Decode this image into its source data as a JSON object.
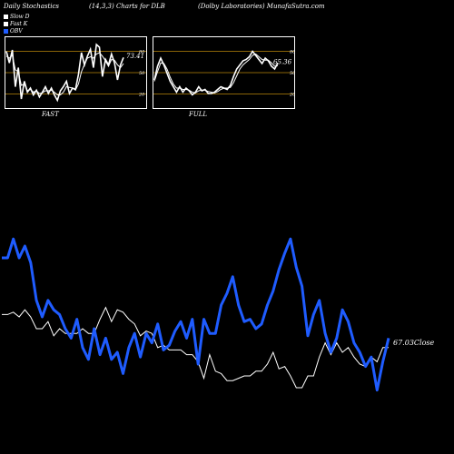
{
  "header": {
    "left": "Daily Stochastics",
    "middle": "(14,3,3) Charts for DLB",
    "right": "(Dolby Laboratories) MunafaSutra.com"
  },
  "legend": [
    {
      "label": "Slow  D",
      "color": "#ffffff"
    },
    {
      "label": "Fast K",
      "color": "#ffffff"
    },
    {
      "label": "OBV",
      "color": "#1f5cff"
    }
  ],
  "colors": {
    "obv": "#1f5cff",
    "price": "#ffffff",
    "levels": "#b8860b",
    "background": "#000000"
  },
  "chart_data": [
    {
      "type": "line",
      "name": "fast",
      "label": "FAST",
      "ylim": [
        0,
        100
      ],
      "levels": [
        20,
        50,
        80
      ],
      "level_labels": [
        "80",
        "50",
        "20"
      ],
      "value_label": "73.41",
      "series": [
        {
          "values": [
            82,
            65,
            84,
            30,
            58,
            12,
            38,
            22,
            28,
            18,
            25,
            15,
            22,
            30,
            20,
            28,
            18,
            10,
            24,
            30,
            38,
            20,
            28,
            26,
            48,
            80,
            62,
            75,
            85,
            58,
            92,
            88,
            45,
            70,
            62,
            78,
            65,
            40,
            62,
            73
          ]
        },
        {
          "values": [
            75,
            72,
            76,
            55,
            52,
            32,
            34,
            24,
            26,
            22,
            24,
            20,
            21,
            24,
            24,
            25,
            22,
            18,
            18,
            22,
            30,
            29,
            28,
            25,
            34,
            52,
            63,
            72,
            74,
            72,
            78,
            80,
            75,
            68,
            60,
            70,
            69,
            62,
            58,
            64
          ]
        }
      ]
    },
    {
      "type": "line",
      "name": "full",
      "label": "FULL",
      "ylim": [
        0,
        100
      ],
      "levels": [
        20,
        50,
        80
      ],
      "level_labels": [
        "80",
        "50",
        "20"
      ],
      "value_label": "65.36",
      "series": [
        {
          "values": [
            40,
            60,
            72,
            62,
            50,
            38,
            30,
            22,
            30,
            22,
            28,
            24,
            18,
            22,
            30,
            24,
            26,
            20,
            20,
            22,
            26,
            30,
            28,
            26,
            32,
            45,
            56,
            62,
            68,
            70,
            74,
            82,
            76,
            70,
            64,
            72,
            68,
            60,
            56,
            65
          ]
        },
        {
          "values": [
            38,
            52,
            65,
            64,
            56,
            44,
            34,
            28,
            28,
            26,
            26,
            25,
            22,
            21,
            24,
            25,
            25,
            23,
            22,
            21,
            23,
            26,
            28,
            28,
            29,
            36,
            46,
            56,
            62,
            66,
            70,
            76,
            78,
            74,
            70,
            69,
            69,
            65,
            60,
            61
          ]
        }
      ]
    },
    {
      "type": "line",
      "name": "price-obv",
      "value_label": "67.03Close",
      "ylim": [
        0,
        100
      ],
      "series": [
        {
          "name": "OBV",
          "values": [
            60,
            60,
            68,
            60,
            65,
            58,
            42,
            35,
            42,
            38,
            36,
            30,
            26,
            34,
            22,
            17,
            30,
            19,
            26,
            17,
            20,
            11,
            22,
            28,
            18,
            28,
            24,
            32,
            21,
            23,
            29,
            33,
            26,
            34,
            15,
            34,
            28,
            28,
            40,
            45,
            52,
            40,
            33,
            34,
            30,
            32,
            40,
            46,
            55,
            62,
            68,
            56,
            48,
            27,
            36,
            42,
            28,
            20,
            26,
            38,
            33,
            24,
            20,
            14,
            18,
            4,
            16,
            26
          ]
        },
        {
          "name": "Close",
          "values": [
            36,
            36,
            37,
            35,
            38,
            35,
            30,
            30,
            33,
            27,
            30,
            28,
            28,
            28,
            30,
            28,
            28,
            34,
            39,
            33,
            38,
            37,
            34,
            32,
            27,
            29,
            28,
            22,
            23,
            21,
            21,
            21,
            19,
            19,
            16,
            9,
            19,
            12,
            11,
            8,
            8,
            9,
            10,
            10,
            12,
            12,
            15,
            20,
            13,
            14,
            10,
            5,
            5,
            10,
            10,
            18,
            24,
            19,
            24,
            20,
            22,
            18,
            15,
            14,
            18,
            16,
            22,
            22
          ]
        }
      ]
    }
  ]
}
